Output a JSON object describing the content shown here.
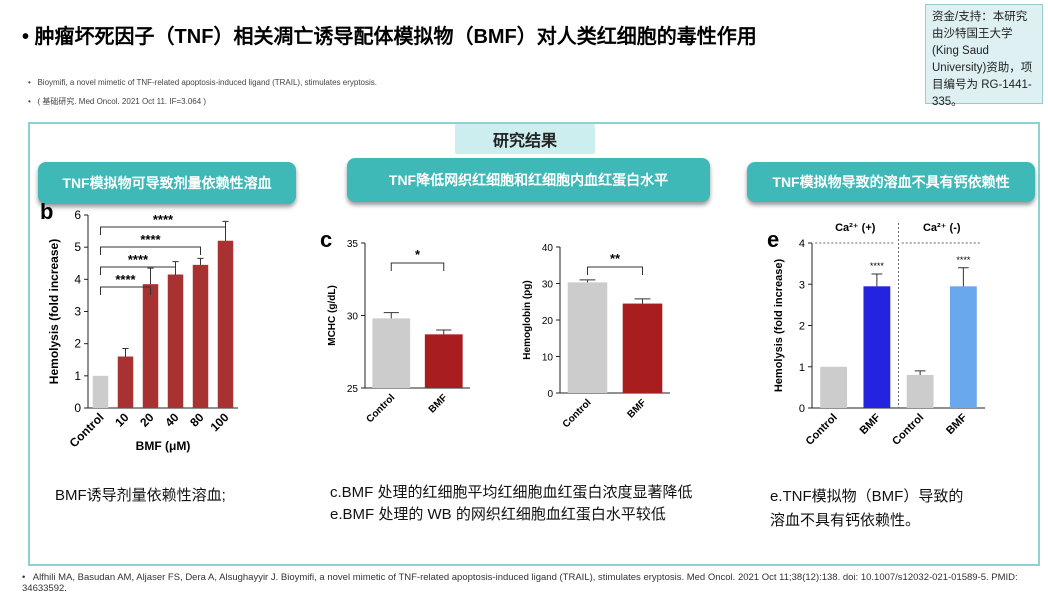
{
  "header": {
    "title": "肿瘤坏死因子（TNF）相关凋亡诱导配体模拟物（BMF）对人类红细胞的毒性作用",
    "refs": [
      "Bioymifi, a novel mimetic of TNF-related apoptosis-induced ligand (TRAIL), stimulates eryptosis.",
      "( 基础研究. Med Oncol. 2021 Oct 11. IF=3.064 )"
    ],
    "funding": "资金/支持：本研究由沙特国王大学 (King Saud University)资助，项目编号为 RG-1441-335。"
  },
  "results": {
    "tab": "研究结果",
    "sections": [
      "TNF模拟物可导致剂量依赖性溶血",
      "TNF降低网织红细胞和红细胞内血红蛋白水平",
      "TNF模拟物导致的溶血不具有钙依赖性"
    ],
    "captions": [
      [
        "BMF诱导剂量依赖性溶血;"
      ],
      [
        "c.BMF 处理的红细胞平均红细胞血红蛋白浓度显著降低",
        "e.BMF 处理的 WB 的网织红细胞血红蛋白水平较低"
      ],
      [
        "e.TNF模拟物（BMF）导致的",
        "溶血不具有钙依赖性。"
      ]
    ]
  },
  "footer": "Alfhili MA, Basudan AM, Aljaser FS, Dera A, Alsughayyir J. Bioymifi, a novel mimetic of TNF-related apoptosis-induced ligand (TRAIL), stimulates eryptosis. Med Oncol. 2021 Oct 11;38(12):138. doi: 10.1007/s12032-021-01589-5. PMID: 34633592.",
  "chart_data": [
    {
      "type": "bar",
      "letter": "b",
      "y_label": "Hemolysis (fold increase)",
      "x_label": "BMF (μM)",
      "categories": [
        "Control",
        "10",
        "20",
        "40",
        "80",
        "100"
      ],
      "values": [
        1,
        1.6,
        3.85,
        4.15,
        4.45,
        5.2
      ],
      "errors": [
        null,
        0.25,
        0.5,
        0.4,
        0.2,
        0.6
      ],
      "colors": [
        "#cccccc",
        "#a83232",
        "#a83232",
        "#a83232",
        "#a83232",
        "#a83232"
      ],
      "ylim": [
        0,
        6
      ],
      "yticks": [
        0,
        1,
        2,
        3,
        4,
        5,
        6
      ],
      "annotations": [
        "****",
        "****",
        "****",
        "****"
      ]
    },
    {
      "type": "bar",
      "letter": "c",
      "y_label": "MCHC (g/dL)",
      "categories": [
        "Control",
        "BMF"
      ],
      "values": [
        29.8,
        28.7
      ],
      "errors": [
        0.4,
        0.3
      ],
      "colors": [
        "#cccccc",
        "#a81e1e"
      ],
      "ylim": [
        25,
        35
      ],
      "yticks": [
        25,
        30,
        35
      ],
      "annotations": [
        "*"
      ]
    },
    {
      "type": "bar",
      "y_label": "Hemoglobin (pg)",
      "categories": [
        "Control",
        "BMF"
      ],
      "values": [
        30.3,
        24.5
      ],
      "errors": [
        0.7,
        1.3
      ],
      "colors": [
        "#cccccc",
        "#a81e1e"
      ],
      "ylim": [
        0,
        40
      ],
      "yticks": [
        0,
        10,
        20,
        30,
        40
      ],
      "annotations": [
        "**"
      ]
    },
    {
      "type": "bar",
      "letter": "e",
      "y_label": "Hemolysis (fold increase)",
      "categories": [
        "Control",
        "BMF",
        "Control",
        "BMF"
      ],
      "values": [
        1,
        2.95,
        0.8,
        2.95
      ],
      "errors": [
        null,
        0.3,
        0.1,
        0.45
      ],
      "colors": [
        "#cccccc",
        "#2424e0",
        "#cccccc",
        "#6aa8ee"
      ],
      "ylim": [
        0,
        4
      ],
      "yticks": [
        0,
        1,
        2,
        3,
        4
      ],
      "groups": [
        "Ca²⁺ (+)",
        "Ca²⁺ (-)"
      ],
      "annotations": [
        "****",
        "****"
      ]
    }
  ]
}
